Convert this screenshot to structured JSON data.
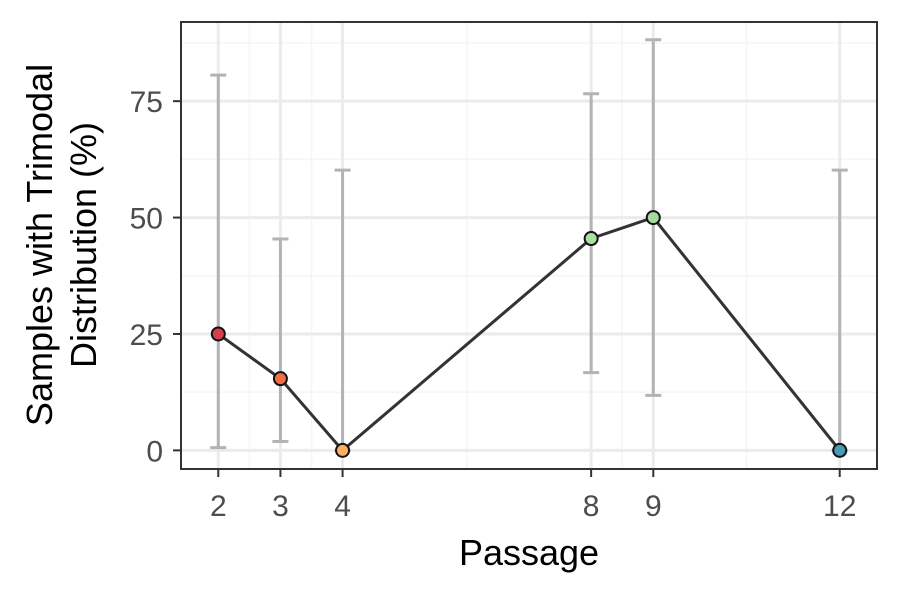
{
  "chart_data": {
    "type": "line",
    "title": "",
    "xlabel": "Passage",
    "ylabel_lines": [
      "Samples with Trimodal",
      "Distribution (%)"
    ],
    "xlim": [
      1.4,
      12.6
    ],
    "ylim": [
      -4,
      92
    ],
    "x_ticks": [
      2,
      3,
      4,
      8,
      9,
      12
    ],
    "x_tick_labels": [
      "2",
      "3",
      "4",
      "8",
      "9",
      "12"
    ],
    "x_minor_grid": [
      2.5,
      3.5,
      6,
      8.5,
      10.5
    ],
    "y_ticks": [
      0,
      25,
      50,
      75
    ],
    "y_tick_labels": [
      "0",
      "25",
      "50",
      "75"
    ],
    "y_minor_grid": [
      12.5,
      37.5,
      62.5,
      87.5
    ],
    "grid": true,
    "legend": "none",
    "series": [
      {
        "x": [
          2,
          3,
          4,
          8,
          9,
          12
        ],
        "values": [
          25,
          15.4,
          0,
          45.5,
          50,
          0
        ],
        "ci_low": [
          0.6,
          1.9,
          0,
          16.7,
          11.8,
          0
        ],
        "ci_high": [
          80.6,
          45.4,
          60.2,
          76.6,
          88.2,
          60.2
        ],
        "point_colors": [
          "#d53e4f",
          "#f46d43",
          "#fdae61",
          "#abdda4",
          "#a6dba0",
          "#3288bd"
        ]
      }
    ],
    "colors": {
      "line": "#333333",
      "errorbar": "#b3b3b3",
      "panel_border": "#333333",
      "grid_major": "#ebebeb",
      "grid_minor": "#f5f5f5",
      "point_12": "#4a9bb5"
    }
  }
}
